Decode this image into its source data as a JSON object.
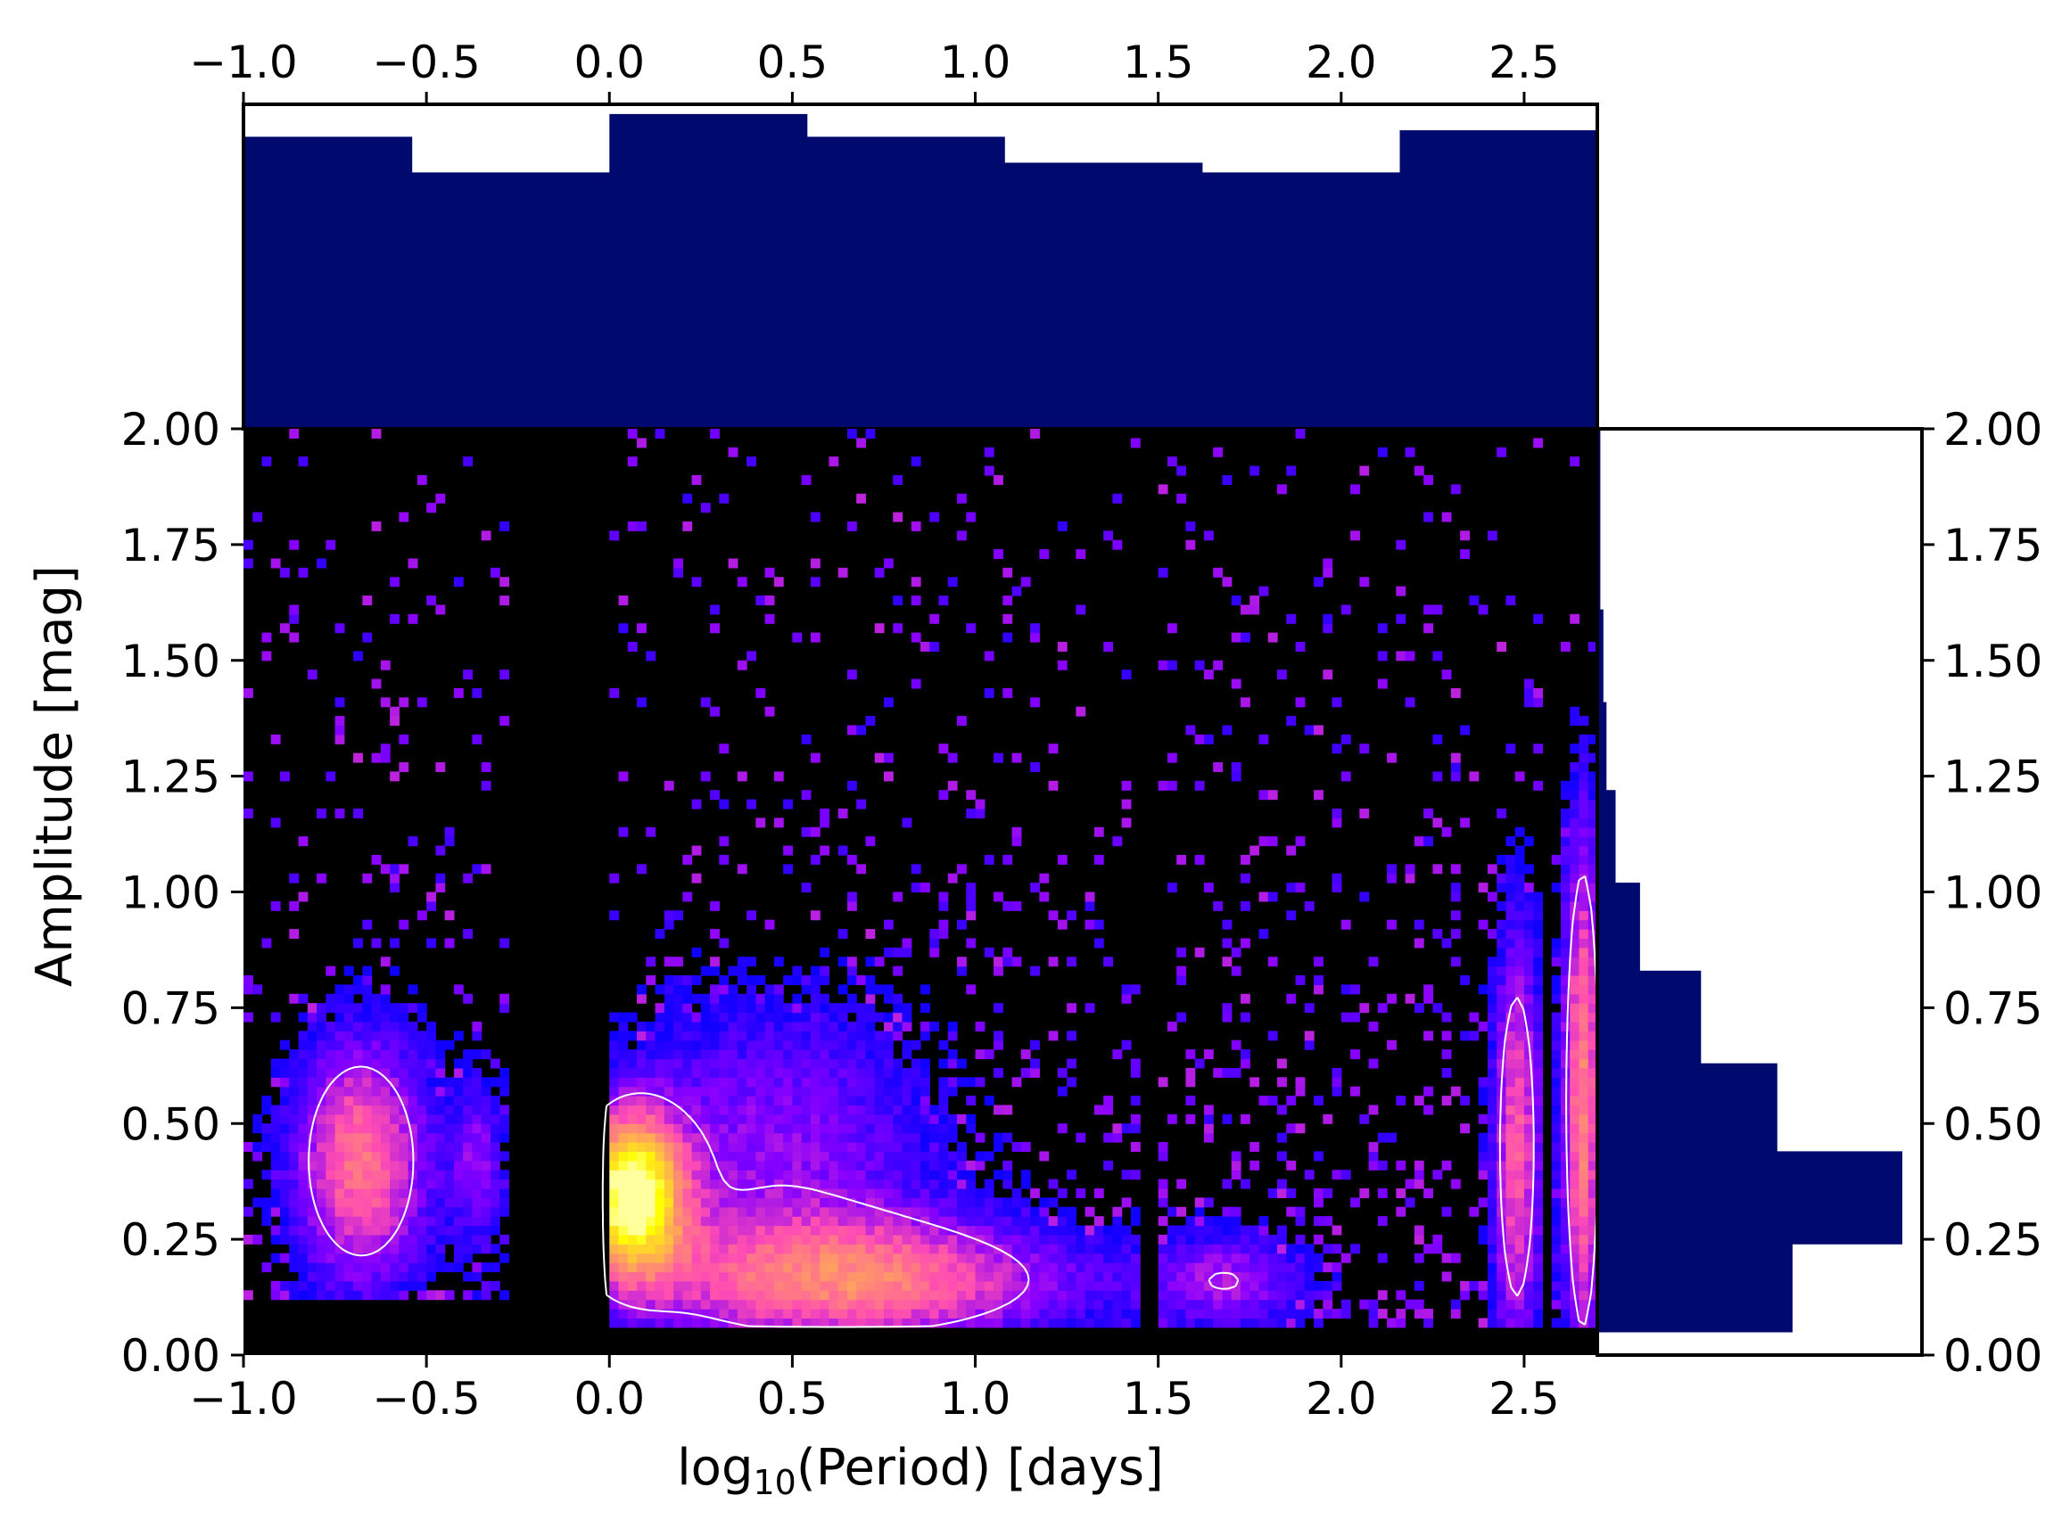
{
  "chart_data": {
    "type": "heatmap",
    "xlabel_prefix": "log",
    "xlabel_sub": "10",
    "xlabel_suffix": "(Period) [days]",
    "ylabel": "Amplitude [mag]",
    "xlim": [
      -1.0,
      2.7
    ],
    "ylim": [
      0.0,
      2.0
    ],
    "x_ticks": [
      "−1.0",
      "−0.5",
      "0.0",
      "0.5",
      "1.0",
      "1.5",
      "2.0",
      "2.5"
    ],
    "x_tick_values": [
      -1.0,
      -0.5,
      0.0,
      0.5,
      1.0,
      1.5,
      2.0,
      2.5
    ],
    "y_ticks": [
      "0.00",
      "0.25",
      "0.50",
      "0.75",
      "1.00",
      "1.25",
      "1.50",
      "1.75",
      "2.00"
    ],
    "y_tick_values": [
      0.0,
      0.25,
      0.5,
      0.75,
      1.0,
      1.25,
      1.5,
      1.75,
      2.0
    ],
    "colormap": "gnuplot2",
    "contour_color": "#ffffff",
    "heatmap_empty_color": "#000000",
    "density_components": [
      {
        "x": -0.68,
        "y": 0.42,
        "sx": 0.14,
        "sy": 0.2,
        "w": 0.6
      },
      {
        "x": -0.36,
        "y": 0.42,
        "sx": 0.05,
        "sy": 0.12,
        "w": 0.28
      },
      {
        "x": 0.06,
        "y": 0.35,
        "sx": 0.1,
        "sy": 0.12,
        "w": 1.0
      },
      {
        "x": 0.7,
        "y": 0.16,
        "sx": 0.45,
        "sy": 0.1,
        "w": 0.55
      },
      {
        "x": 0.45,
        "y": 0.45,
        "sx": 0.35,
        "sy": 0.25,
        "w": 0.32
      },
      {
        "x": 1.7,
        "y": 0.16,
        "sx": 0.16,
        "sy": 0.08,
        "w": 0.32
      },
      {
        "x": 2.48,
        "y": 0.45,
        "sx": 0.05,
        "sy": 0.35,
        "w": 0.55
      },
      {
        "x": 2.66,
        "y": 0.55,
        "sx": 0.04,
        "sy": 0.45,
        "w": 0.65
      }
    ],
    "top_histogram": {
      "bin_edges": [
        -1.0,
        -0.54,
        0.0,
        0.54,
        1.08,
        1.62,
        2.16,
        2.7
      ],
      "counts": [
        0.9,
        0.79,
        0.97,
        0.9,
        0.82,
        0.79,
        0.92
      ],
      "color": "#000a6e"
    },
    "right_histogram": {
      "bin_edges": [
        0.05,
        0.24,
        0.44,
        0.63,
        0.83,
        1.02,
        1.22,
        1.41,
        1.61,
        1.8,
        2.0
      ],
      "counts": [
        0.64,
        1.0,
        0.59,
        0.34,
        0.14,
        0.06,
        0.03,
        0.02,
        0.01,
        0.01
      ],
      "color": "#000a6e"
    }
  }
}
